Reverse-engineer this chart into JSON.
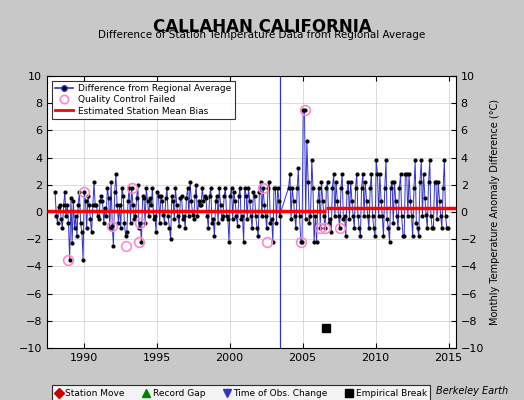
{
  "title": "CALLAHAN CALIFORNIA",
  "subtitle": "Difference of Station Temperature Data from Regional Average",
  "ylabel": "Monthly Temperature Anomaly Difference (°C)",
  "xlabel_credit": "Berkeley Earth",
  "xlim": [
    1987.5,
    2015.5
  ],
  "ylim": [
    -10,
    10
  ],
  "yticks": [
    -10,
    -8,
    -6,
    -4,
    -2,
    0,
    2,
    4,
    6,
    8,
    10
  ],
  "xticks": [
    1990,
    1995,
    2000,
    2005,
    2010,
    2015
  ],
  "background_color": "#c8c8c8",
  "plot_bg_color": "#ffffff",
  "line_color": "#3333cc",
  "dot_color": "#000000",
  "bias_color": "#ff0000",
  "qc_color": "#ff88cc",
  "bias_y1": 0.1,
  "bias_y2": 0.3,
  "bias_break_x": 2006.6,
  "empirical_break_x": 2006.6,
  "empirical_break_y": -8.5,
  "obs_change_x": 2003.42,
  "data": {
    "times": [
      1988.04,
      1988.13,
      1988.21,
      1988.29,
      1988.38,
      1988.46,
      1988.54,
      1988.63,
      1988.71,
      1988.79,
      1988.88,
      1988.96,
      1989.04,
      1989.13,
      1989.21,
      1989.29,
      1989.38,
      1989.46,
      1989.54,
      1989.63,
      1989.71,
      1989.79,
      1989.88,
      1989.96,
      1990.04,
      1990.13,
      1990.21,
      1990.29,
      1990.38,
      1990.46,
      1990.54,
      1990.63,
      1990.71,
      1990.79,
      1990.88,
      1990.96,
      1991.04,
      1991.13,
      1991.21,
      1991.29,
      1991.38,
      1991.46,
      1991.54,
      1991.63,
      1991.71,
      1991.79,
      1991.88,
      1991.96,
      1992.04,
      1992.13,
      1992.21,
      1992.29,
      1992.38,
      1992.46,
      1992.54,
      1992.63,
      1992.71,
      1992.79,
      1992.88,
      1992.96,
      1993.04,
      1993.13,
      1993.21,
      1993.29,
      1993.38,
      1993.46,
      1993.54,
      1993.63,
      1993.71,
      1993.79,
      1993.88,
      1993.96,
      1994.04,
      1994.13,
      1994.21,
      1994.29,
      1994.38,
      1994.46,
      1994.54,
      1994.63,
      1994.71,
      1994.79,
      1994.88,
      1994.96,
      1995.04,
      1995.13,
      1995.21,
      1995.29,
      1995.38,
      1995.46,
      1995.54,
      1995.63,
      1995.71,
      1995.79,
      1995.88,
      1995.96,
      1996.04,
      1996.13,
      1996.21,
      1996.29,
      1996.38,
      1996.46,
      1996.54,
      1996.63,
      1996.71,
      1996.79,
      1996.88,
      1996.96,
      1997.04,
      1997.13,
      1997.21,
      1997.29,
      1997.38,
      1997.46,
      1997.54,
      1997.63,
      1997.71,
      1997.79,
      1997.88,
      1997.96,
      1998.04,
      1998.13,
      1998.21,
      1998.29,
      1998.38,
      1998.46,
      1998.54,
      1998.63,
      1998.71,
      1998.79,
      1998.88,
      1998.96,
      1999.04,
      1999.13,
      1999.21,
      1999.29,
      1999.38,
      1999.46,
      1999.54,
      1999.63,
      1999.71,
      1999.79,
      1999.88,
      1999.96,
      2000.04,
      2000.13,
      2000.21,
      2000.29,
      2000.38,
      2000.46,
      2000.54,
      2000.63,
      2000.71,
      2000.79,
      2000.88,
      2000.96,
      2001.04,
      2001.13,
      2001.21,
      2001.29,
      2001.38,
      2001.46,
      2001.54,
      2001.63,
      2001.71,
      2001.79,
      2001.88,
      2001.96,
      2002.04,
      2002.13,
      2002.21,
      2002.29,
      2002.38,
      2002.46,
      2002.54,
      2002.63,
      2002.71,
      2002.79,
      2002.88,
      2002.96,
      2003.04,
      2003.13,
      2003.21,
      2003.29,
      2003.38,
      2003.42,
      2004.04,
      2004.13,
      2004.21,
      2004.29,
      2004.38,
      2004.46,
      2004.54,
      2004.63,
      2004.71,
      2004.79,
      2004.88,
      2004.96,
      2005.04,
      2005.13,
      2005.21,
      2005.29,
      2005.38,
      2005.46,
      2005.54,
      2005.63,
      2005.71,
      2005.79,
      2005.88,
      2005.96,
      2006.04,
      2006.13,
      2006.21,
      2006.29,
      2006.38,
      2006.46,
      2006.54,
      2006.63,
      2006.71,
      2006.79,
      2006.88,
      2006.96,
      2007.04,
      2007.13,
      2007.21,
      2007.29,
      2007.38,
      2007.46,
      2007.54,
      2007.63,
      2007.71,
      2007.79,
      2007.88,
      2007.96,
      2008.04,
      2008.13,
      2008.21,
      2008.29,
      2008.38,
      2008.46,
      2008.54,
      2008.63,
      2008.71,
      2008.79,
      2008.88,
      2008.96,
      2009.04,
      2009.13,
      2009.21,
      2009.29,
      2009.38,
      2009.46,
      2009.54,
      2009.63,
      2009.71,
      2009.79,
      2009.88,
      2009.96,
      2010.04,
      2010.13,
      2010.21,
      2010.29,
      2010.38,
      2010.46,
      2010.54,
      2010.63,
      2010.71,
      2010.79,
      2010.88,
      2010.96,
      2011.04,
      2011.13,
      2011.21,
      2011.29,
      2011.38,
      2011.46,
      2011.54,
      2011.63,
      2011.71,
      2011.79,
      2011.88,
      2011.96,
      2012.04,
      2012.13,
      2012.21,
      2012.29,
      2012.38,
      2012.46,
      2012.54,
      2012.63,
      2012.71,
      2012.79,
      2012.88,
      2012.96,
      2013.04,
      2013.13,
      2013.21,
      2013.29,
      2013.38,
      2013.46,
      2013.54,
      2013.63,
      2013.71,
      2013.79,
      2013.88,
      2013.96,
      2014.04,
      2014.13,
      2014.21,
      2014.29,
      2014.38,
      2014.46,
      2014.54,
      2014.63,
      2014.71,
      2014.79,
      2014.88,
      2014.96
    ],
    "values": [
      1.5,
      -0.3,
      -0.8,
      0.4,
      0.5,
      -0.5,
      -1.2,
      0.5,
      1.5,
      -0.3,
      0.5,
      -0.8,
      -3.5,
      1.0,
      -2.3,
      0.8,
      -1.2,
      -0.3,
      -1.8,
      0.5,
      1.5,
      -0.8,
      -1.5,
      -3.5,
      1.5,
      0.8,
      -1.2,
      1.2,
      0.5,
      -0.5,
      -1.5,
      0.5,
      2.2,
      0.5,
      0.5,
      -0.3,
      -0.5,
      0.8,
      1.2,
      0.8,
      -0.8,
      0.3,
      -0.3,
      1.8,
      1.0,
      -1.2,
      2.2,
      -1.0,
      -2.5,
      1.5,
      2.8,
      0.5,
      -0.8,
      0.5,
      -1.2,
      1.8,
      1.2,
      -0.8,
      -1.8,
      -1.5,
      0.8,
      1.8,
      -0.8,
      1.8,
      0.5,
      -0.5,
      -0.3,
      1.0,
      2.0,
      -1.2,
      -0.8,
      -2.2,
      1.2,
      1.0,
      -0.8,
      1.8,
      0.8,
      -0.3,
      1.0,
      0.5,
      1.8,
      -0.5,
      -0.3,
      -1.5,
      1.5,
      1.2,
      -0.8,
      1.2,
      0.8,
      -0.2,
      -0.8,
      1.0,
      1.8,
      -0.3,
      -1.2,
      -2.0,
      1.2,
      0.8,
      -0.5,
      1.8,
      0.5,
      -0.3,
      -1.0,
      1.0,
      1.2,
      -0.5,
      -0.3,
      -1.2,
      1.0,
      1.8,
      -0.3,
      2.2,
      0.8,
      -0.2,
      -0.5,
      1.2,
      2.0,
      -0.3,
      0.8,
      0.5,
      0.5,
      1.8,
      0.8,
      1.2,
      1.0,
      -0.3,
      -1.2,
      1.2,
      1.8,
      -0.8,
      -0.5,
      -1.8,
      0.8,
      1.2,
      -0.8,
      1.8,
      0.5,
      -0.5,
      -0.3,
      1.2,
      1.8,
      -0.3,
      -0.5,
      -2.2,
      1.2,
      1.8,
      -0.5,
      1.5,
      0.8,
      -0.3,
      -1.0,
      1.2,
      1.8,
      -0.5,
      -0.3,
      -2.2,
      1.8,
      1.2,
      -0.5,
      1.8,
      0.8,
      -0.3,
      -1.2,
      1.5,
      1.2,
      -0.3,
      -1.2,
      -1.8,
      1.5,
      2.2,
      -0.3,
      1.8,
      0.5,
      -0.3,
      -1.2,
      1.8,
      2.2,
      -0.8,
      -0.5,
      -2.2,
      1.8,
      1.8,
      -0.8,
      1.8,
      0.8,
      -0.3,
      1.8,
      2.8,
      -0.5,
      1.8,
      0.8,
      -0.3,
      -1.2,
      1.8,
      3.2,
      -0.3,
      -2.2,
      -2.2,
      7.5,
      7.5,
      -0.5,
      5.2,
      2.2,
      -0.8,
      -0.3,
      3.8,
      1.8,
      -2.2,
      -0.3,
      -2.2,
      0.8,
      1.8,
      -1.2,
      2.2,
      0.8,
      -0.3,
      -1.2,
      1.8,
      2.2,
      -0.8,
      -0.5,
      -1.5,
      1.8,
      2.8,
      -0.3,
      2.2,
      0.8,
      -0.3,
      -1.2,
      1.8,
      2.8,
      -0.5,
      -0.3,
      -1.8,
      1.5,
      2.2,
      -0.5,
      2.2,
      0.8,
      -0.3,
      -1.2,
      1.8,
      2.8,
      -0.3,
      -1.2,
      -1.8,
      1.8,
      2.8,
      -0.3,
      2.2,
      0.8,
      -0.3,
      -1.2,
      1.8,
      2.8,
      -0.3,
      -1.2,
      -1.8,
      3.8,
      2.8,
      -0.3,
      2.8,
      0.8,
      -0.3,
      -1.8,
      1.8,
      3.8,
      -0.5,
      -1.2,
      -2.2,
      1.8,
      2.2,
      -0.8,
      2.2,
      0.8,
      -0.3,
      -1.2,
      1.8,
      2.8,
      -0.3,
      -1.8,
      -1.8,
      2.8,
      2.8,
      -0.3,
      2.8,
      0.8,
      -0.3,
      -1.8,
      1.8,
      3.8,
      -0.8,
      -1.2,
      -1.8,
      2.2,
      3.8,
      -0.3,
      2.8,
      1.0,
      -0.2,
      -1.2,
      2.2,
      3.8,
      -0.3,
      -1.2,
      -1.2,
      2.2,
      2.2,
      -0.5,
      2.2,
      0.8,
      -0.3,
      -1.2,
      1.8,
      3.8,
      -0.3,
      -1.2,
      -1.2
    ],
    "qc_failed_times": [
      1988.96,
      1990.04,
      1991.96,
      1992.88,
      1993.29,
      1993.79,
      1993.88,
      2002.29,
      2002.54,
      2004.88,
      2005.13,
      2006.21,
      2006.54,
      2007.54
    ],
    "qc_failed_values": [
      -3.5,
      1.5,
      -1.0,
      -2.5,
      1.8,
      -2.2,
      -0.8,
      1.8,
      -2.2,
      -2.2,
      7.5,
      -1.2,
      -1.2,
      -1.2
    ]
  }
}
